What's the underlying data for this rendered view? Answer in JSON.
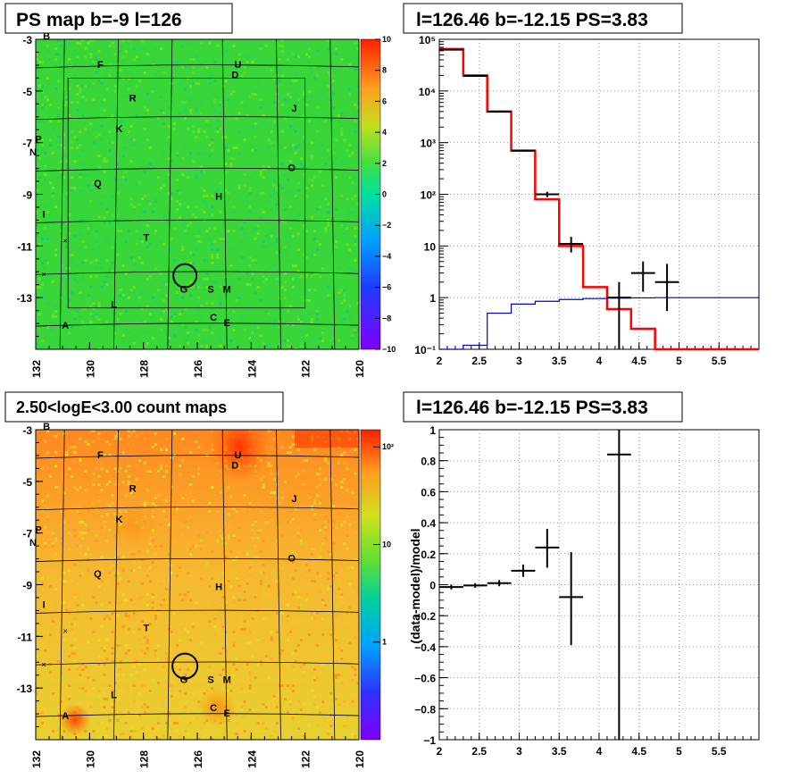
{
  "panels": {
    "tl_title": "PS map b=-9 l=126",
    "tr_title": "l=126.46 b=-12.15 PS=3.83",
    "bl_title": "2.50<logE<3.00 count maps",
    "br_title": "l=126.46 b=-12.15 PS=3.83",
    "br_ylabel": "(data-model)/model"
  },
  "maps": {
    "x_ticks": [
      "132",
      "130",
      "128",
      "126",
      "124",
      "122",
      "120"
    ],
    "y_ticks": [
      "-3",
      "-5",
      "-7",
      "-9",
      "-11",
      "-13"
    ],
    "ps_colorbar_ticks": [
      "10",
      "8",
      "6",
      "4",
      "2",
      "0",
      "−2",
      "−4",
      "−6",
      "−8",
      "−10"
    ],
    "count_colorbar_ticks": [
      "10²",
      "10",
      "1"
    ],
    "sources": [
      {
        "name": "B",
        "l": 131.6,
        "b": -3.0
      },
      {
        "name": "F",
        "l": 129.6,
        "b": -4.1
      },
      {
        "name": "U",
        "l": 124.5,
        "b": -4.1
      },
      {
        "name": "D",
        "l": 124.6,
        "b": -4.5
      },
      {
        "name": "R",
        "l": 128.4,
        "b": -5.4
      },
      {
        "name": "J",
        "l": 122.4,
        "b": -5.8
      },
      {
        "name": "K",
        "l": 128.9,
        "b": -6.6
      },
      {
        "name": "P",
        "l": 131.9,
        "b": -7.0
      },
      {
        "name": "N",
        "l": 132.1,
        "b": -7.5
      },
      {
        "name": "O",
        "l": 122.5,
        "b": -8.1
      },
      {
        "name": "Q",
        "l": 129.7,
        "b": -8.7
      },
      {
        "name": "H",
        "l": 125.2,
        "b": -9.2
      },
      {
        "name": "I",
        "l": 131.7,
        "b": -9.9
      },
      {
        "name": "T",
        "l": 127.9,
        "b": -10.8
      },
      {
        "name": "G",
        "l": 126.5,
        "b": -12.8
      },
      {
        "name": "S",
        "l": 125.5,
        "b": -12.8
      },
      {
        "name": "M",
        "l": 124.9,
        "b": -12.8
      },
      {
        "name": "L",
        "l": 129.1,
        "b": -13.4
      },
      {
        "name": "C",
        "l": 125.4,
        "b": -13.9
      },
      {
        "name": "E",
        "l": 124.9,
        "b": -14.1
      },
      {
        "name": "A",
        "l": 130.9,
        "b": -14.2
      }
    ]
  },
  "chart_data": [
    {
      "type": "heatmap",
      "title": "PS map b=-9 l=126",
      "xlim": [
        132,
        120
      ],
      "ylim": [
        -15,
        -3
      ],
      "zlim": [
        -10,
        10
      ],
      "circle": {
        "l": 126.46,
        "b": -12.15
      }
    },
    {
      "type": "line",
      "title": "l=126.46 b=-12.15 PS=3.83",
      "y_scale": "log",
      "xlim": [
        2,
        6
      ],
      "ylim": [
        0.1,
        100000
      ],
      "x_ticks": [
        "2",
        "2.5",
        "3",
        "3.5",
        "4",
        "4.5",
        "5",
        "5.5"
      ],
      "y_ticks": [
        "10⁻¹",
        "1",
        "10",
        "10²",
        "10³",
        "10⁴",
        "10⁵"
      ],
      "bin_edges": [
        2.0,
        2.3,
        2.6,
        2.9,
        3.2,
        3.5,
        3.8,
        4.1,
        4.4,
        4.7,
        5.0,
        5.3,
        5.6,
        6.0
      ],
      "series": [
        {
          "color": "#ff0000",
          "values": [
            65000,
            20000,
            4000,
            700,
            80,
            10,
            1.6,
            0.6,
            0.25,
            0.1,
            0.1,
            0.1,
            0.1
          ]
        },
        {
          "color": "#0000cc",
          "values": [
            0.08,
            0.12,
            0.5,
            0.75,
            0.85,
            0.92,
            0.96,
            0.98,
            0.99,
            1.0,
            1.0,
            1.0,
            1.0
          ]
        }
      ],
      "points": [
        {
          "x": 2.15,
          "y": 63000,
          "xerr": 0.15,
          "ylo": 62000,
          "yhi": 64000
        },
        {
          "x": 2.45,
          "y": 19500,
          "xerr": 0.15,
          "ylo": 19000,
          "yhi": 20000
        },
        {
          "x": 2.75,
          "y": 4000,
          "xerr": 0.15,
          "ylo": 3900,
          "yhi": 4100
        },
        {
          "x": 3.05,
          "y": 700,
          "xerr": 0.15,
          "ylo": 670,
          "yhi": 730
        },
        {
          "x": 3.35,
          "y": 100,
          "xerr": 0.15,
          "ylo": 88,
          "yhi": 112
        },
        {
          "x": 3.65,
          "y": 11,
          "xerr": 0.15,
          "ylo": 7.5,
          "yhi": 15
        },
        {
          "x": 4.25,
          "y": 1,
          "xerr": 0.15,
          "ylo": 0.1,
          "yhi": 2
        },
        {
          "x": 4.55,
          "y": 3,
          "xerr": 0.15,
          "ylo": 1.3,
          "yhi": 5
        },
        {
          "x": 4.85,
          "y": 2,
          "xerr": 0.15,
          "ylo": 0.55,
          "yhi": 4.5
        }
      ]
    },
    {
      "type": "heatmap",
      "title": "2.50<logE<3.00 count maps",
      "xlim": [
        132,
        120
      ],
      "ylim": [
        -15,
        -3
      ],
      "z_scale": "log",
      "zlim": [
        0.1,
        150
      ],
      "circle": {
        "l": 126.46,
        "b": -12.15
      }
    },
    {
      "type": "scatter",
      "title": "l=126.46 b=-12.15 PS=3.83",
      "ylabel": "(data-model)/model",
      "xlim": [
        2,
        6
      ],
      "ylim": [
        -1,
        1
      ],
      "x_ticks": [
        "2",
        "2.5",
        "3",
        "3.5",
        "4",
        "4.5",
        "5",
        "5.5"
      ],
      "y_ticks": [
        "−1",
        "−0.8",
        "−0.6",
        "−0.4",
        "−0.2",
        "0",
        "0.2",
        "0.4",
        "0.6",
        "0.8",
        "1"
      ],
      "points": [
        {
          "x": 2.15,
          "y": -0.015,
          "xerr": 0.15,
          "ylo": -0.03,
          "yhi": 0.0
        },
        {
          "x": 2.45,
          "y": -0.005,
          "xerr": 0.15,
          "ylo": -0.02,
          "yhi": 0.01
        },
        {
          "x": 2.75,
          "y": 0.01,
          "xerr": 0.15,
          "ylo": -0.01,
          "yhi": 0.03
        },
        {
          "x": 3.05,
          "y": 0.09,
          "xerr": 0.15,
          "ylo": 0.05,
          "yhi": 0.13
        },
        {
          "x": 3.35,
          "y": 0.24,
          "xerr": 0.15,
          "ylo": 0.11,
          "yhi": 0.36
        },
        {
          "x": 3.65,
          "y": -0.08,
          "xerr": 0.15,
          "ylo": -0.39,
          "yhi": 0.21
        },
        {
          "x": 4.25,
          "y": 0.84,
          "xerr": 0.15,
          "ylo": -1.0,
          "yhi": 1.0
        }
      ]
    }
  ]
}
